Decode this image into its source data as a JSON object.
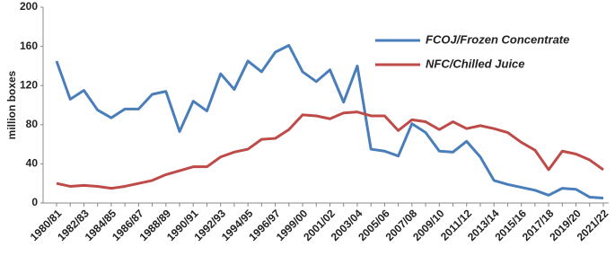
{
  "chart_data": {
    "type": "line",
    "y_label": "million boxes",
    "categories": [
      "1980/81",
      null,
      "1982/83",
      null,
      "1984/85",
      null,
      "1986/87",
      null,
      "1988/89",
      null,
      "1990/91",
      null,
      "1992/93",
      null,
      "1994/95",
      null,
      "1996/97",
      null,
      "1999/00",
      null,
      "2001/02",
      null,
      "2003/04",
      null,
      "2005/06",
      null,
      "2007/08",
      null,
      "2009/10",
      null,
      "2011/12",
      null,
      "2013/14",
      null,
      "2015/16",
      null,
      "2017/18",
      null,
      "2019/20",
      null,
      "2021/22"
    ],
    "series": [
      {
        "name": "FCOJ/Frozen Concentrate",
        "color": "#4a7ebb",
        "values": [
          145,
          106,
          115,
          95,
          87,
          96,
          96,
          111,
          114,
          73,
          104,
          94,
          132,
          116,
          145,
          134,
          154,
          161,
          134,
          124,
          136,
          103,
          140,
          55,
          53,
          48,
          81,
          72,
          53,
          52,
          63,
          47,
          23,
          19,
          16,
          13,
          8,
          15,
          14,
          6,
          5
        ]
      },
      {
        "name": "NFC/Chilled Juice",
        "color": "#be4b48",
        "values": [
          20,
          17,
          18,
          17,
          15,
          17,
          20,
          23,
          29,
          33,
          37,
          37,
          47,
          52,
          55,
          65,
          66,
          75,
          90,
          89,
          86,
          92,
          93,
          89,
          89,
          74,
          85,
          83,
          75,
          83,
          76,
          79,
          76,
          72,
          62,
          54,
          34,
          53,
          50,
          44,
          34
        ]
      }
    ],
    "ylim": [
      0,
      200
    ],
    "yticks": [
      0,
      40,
      80,
      120,
      160,
      200
    ],
    "legend": "upper right"
  }
}
